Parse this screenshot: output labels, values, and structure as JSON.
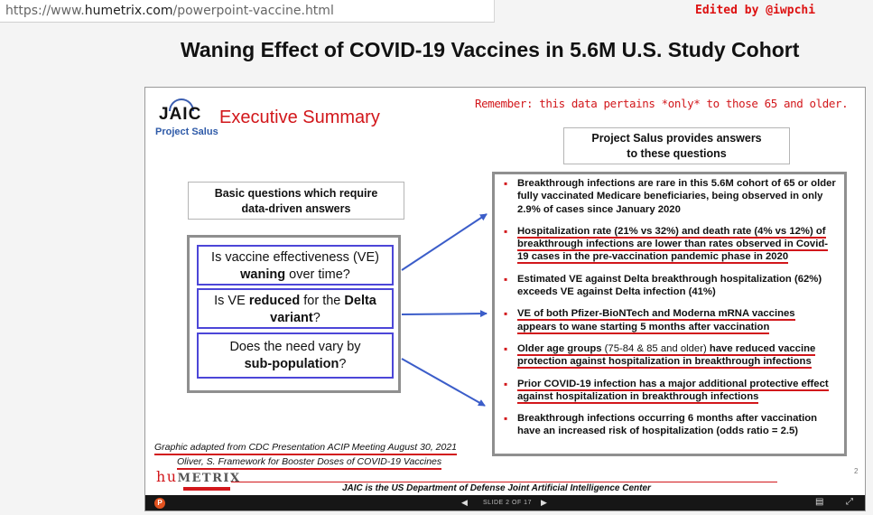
{
  "browser": {
    "url_prefix": "https://www.",
    "url_domain": "humetrix.com",
    "url_path": "/powerpoint-vaccine.html",
    "edited_by": "Edited by @iwpchi"
  },
  "page": {
    "title": "Waning Effect of COVID-19 Vaccines in 5.6M U.S. Study Cohort"
  },
  "slide": {
    "logo_text": "JAIC",
    "logo_subtitle": "Project Salus",
    "heading": "Executive Summary",
    "remember_note": "Remember: this data pertains *only* to those 65 and older.",
    "salus_box": [
      "Project Salus provides answers",
      "to these questions"
    ],
    "basic_box": [
      "Basic questions which require",
      "data-driven answers"
    ],
    "questions": [
      {
        "pre": "Is vaccine effectiveness (VE) ",
        "bold": "waning",
        "post": " over time?"
      },
      {
        "pre": "Is VE ",
        "bold": "reduced",
        "mid": " for the ",
        "bold2": "Delta variant",
        "post": "?"
      },
      {
        "pre": "Does the need vary by ",
        "bold": "sub-population",
        "post": "?"
      }
    ],
    "bullets": [
      {
        "text": "Breakthrough infections are rare in this 5.6M cohort of 65 or older fully vaccinated Medicare beneficiaries, being observed in only 2.9% of cases since January 2020",
        "underlined": false
      },
      {
        "text": "Hospitalization rate (21% vs 32%) and death rate (4% vs 12%) of breakthrough infections are lower than rates observed in Covid-19 cases in the pre-vaccination pandemic phase in 2020",
        "underlined": true
      },
      {
        "text": "Estimated VE against Delta breakthrough hospitalization (62%) exceeds VE against Delta infection (41%)",
        "underlined": false
      },
      {
        "text": "VE of both Pfizer-BioNTech and Moderna mRNA vaccines appears to wane starting 5 months after vaccination",
        "underlined": true
      },
      {
        "text_a": "Older age groups ",
        "text_plain": "(75-84 & 85 and older)",
        "text_b": " have reduced vaccine protection against hospitalization in breakthrough infections",
        "underlined": true
      },
      {
        "text": "Prior COVID-19 infection has a major additional protective effect against hospitalization in breakthrough infections",
        "underlined": true
      },
      {
        "text": "Breakthrough infections occurring 6 months after vaccination have an increased risk of hospitalization (odds ratio = 2.5)",
        "underlined": false
      }
    ],
    "footnote_1": "Graphic adapted from CDC Presentation ACIP Meeting August 30, 2021",
    "footnote_2": "Oliver, S. Framework for Booster Doses of COVID-19 Vaccines",
    "brand_hu": "hu",
    "brand_rest": "METRIX",
    "jaic_footer": "JAIC is the US Department of Defense Joint Artificial Intelligence Center",
    "page_number": "2"
  },
  "controls": {
    "slide_indicator": "SLIDE 2 OF 17",
    "prev_icon": "prev-arrow-icon",
    "next_icon": "next-arrow-icon"
  }
}
